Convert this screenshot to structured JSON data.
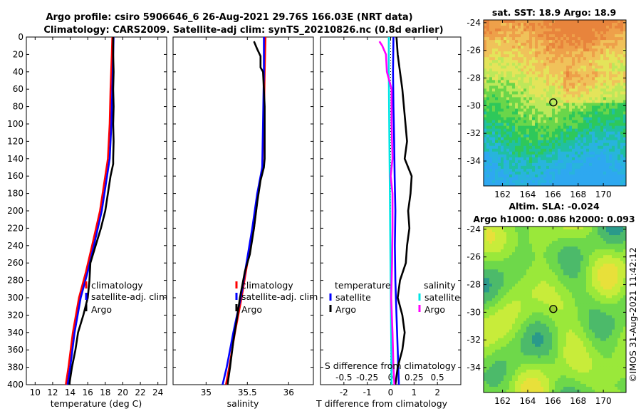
{
  "header": {
    "title_line1": "Argo profile: csiro 5906646_6 26-Aug-2021 29.76S 166.03E (NRT data)",
    "title_line2": "Climatology: CARS2009. Satellite-adj clim: synTS_20210826.nc (0.8d earlier)"
  },
  "copyright": "©IMOS 31-Aug-2021 11:42:12",
  "colors": {
    "climatology": "#ff0000",
    "satellite": "#0000ff",
    "argo": "#000000",
    "s_satellite": "#00e5e5",
    "s_argo": "#ff00ff"
  },
  "chart_data": [
    {
      "id": "temperature",
      "type": "line",
      "xlabel": "temperature (deg C)",
      "ylabel": "",
      "xlim": [
        9,
        25
      ],
      "ylim": [
        400,
        0
      ],
      "xticks": [
        "10",
        "12",
        "14",
        "16",
        "18",
        "20",
        "22",
        "24"
      ],
      "xtick_values": [
        10,
        12,
        14,
        16,
        18,
        20,
        22,
        24
      ],
      "yticks": [
        "0",
        "20",
        "40",
        "60",
        "80",
        "100",
        "120",
        "140",
        "160",
        "180",
        "200",
        "220",
        "240",
        "260",
        "280",
        "300",
        "320",
        "340",
        "360",
        "380",
        "400"
      ],
      "ytick_values": [
        0,
        20,
        40,
        60,
        80,
        100,
        120,
        140,
        160,
        180,
        200,
        220,
        240,
        260,
        280,
        300,
        320,
        340,
        360,
        380,
        400
      ],
      "legend": [
        "climatology",
        "satellite-adj. clim",
        "Argo"
      ],
      "series": [
        {
          "name": "climatology",
          "color": "#ff0000",
          "points": [
            [
              18.8,
              0
            ],
            [
              18.75,
              20
            ],
            [
              18.6,
              60
            ],
            [
              18.5,
              100
            ],
            [
              18.3,
              140
            ],
            [
              18.0,
              160
            ],
            [
              17.4,
              200
            ],
            [
              16.5,
              240
            ],
            [
              15.8,
              270
            ],
            [
              15.0,
              300
            ],
            [
              14.3,
              340
            ],
            [
              13.8,
              380
            ],
            [
              13.5,
              400
            ]
          ]
        },
        {
          "name": "satellite-adj. clim",
          "color": "#0000ff",
          "points": [
            [
              18.95,
              0
            ],
            [
              18.9,
              20
            ],
            [
              18.8,
              60
            ],
            [
              18.7,
              100
            ],
            [
              18.5,
              140
            ],
            [
              18.2,
              160
            ],
            [
              17.6,
              200
            ],
            [
              16.7,
              240
            ],
            [
              16.0,
              270
            ],
            [
              15.2,
              300
            ],
            [
              14.5,
              340
            ],
            [
              14.0,
              380
            ],
            [
              13.7,
              400
            ]
          ]
        },
        {
          "name": "Argo",
          "color": "#000000",
          "points": [
            [
              18.9,
              0
            ],
            [
              18.9,
              20
            ],
            [
              18.95,
              40
            ],
            [
              18.9,
              60
            ],
            [
              18.95,
              80
            ],
            [
              18.9,
              100
            ],
            [
              18.95,
              120
            ],
            [
              18.9,
              140
            ],
            [
              18.9,
              146
            ],
            [
              18.6,
              160
            ],
            [
              18.3,
              180
            ],
            [
              18.0,
              200
            ],
            [
              17.5,
              220
            ],
            [
              16.9,
              240
            ],
            [
              16.3,
              260
            ],
            [
              16.2,
              280
            ],
            [
              16.0,
              300
            ],
            [
              15.5,
              320
            ],
            [
              14.9,
              340
            ],
            [
              14.6,
              360
            ],
            [
              14.2,
              380
            ],
            [
              13.9,
              400
            ]
          ]
        }
      ]
    },
    {
      "id": "salinity",
      "type": "line",
      "xlabel": "salinity",
      "xlim": [
        34.6,
        36.3
      ],
      "ylim": [
        400,
        0
      ],
      "xticks": [
        "35",
        "35.5",
        "36"
      ],
      "xtick_values": [
        35,
        35.5,
        36
      ],
      "legend": [
        "climatology",
        "satellite-adj. clim",
        "Argo"
      ],
      "series": [
        {
          "name": "climatology",
          "color": "#ff0000",
          "points": [
            [
              35.72,
              0
            ],
            [
              35.71,
              40
            ],
            [
              35.7,
              100
            ],
            [
              35.68,
              150
            ],
            [
              35.63,
              180
            ],
            [
              35.58,
              220
            ],
            [
              35.5,
              260
            ],
            [
              35.43,
              300
            ],
            [
              35.35,
              340
            ],
            [
              35.28,
              380
            ],
            [
              35.24,
              400
            ]
          ]
        },
        {
          "name": "satellite-adj. clim",
          "color": "#0000ff",
          "points": [
            [
              35.7,
              0
            ],
            [
              35.7,
              40
            ],
            [
              35.69,
              100
            ],
            [
              35.68,
              150
            ],
            [
              35.62,
              180
            ],
            [
              35.56,
              220
            ],
            [
              35.49,
              260
            ],
            [
              35.42,
              300
            ],
            [
              35.33,
              340
            ],
            [
              35.25,
              380
            ],
            [
              35.2,
              400
            ]
          ]
        },
        {
          "name": "Argo",
          "color": "#000000",
          "points": [
            [
              35.58,
              5
            ],
            [
              35.62,
              14
            ],
            [
              35.66,
              22
            ],
            [
              35.66,
              35
            ],
            [
              35.69,
              40
            ],
            [
              35.7,
              60
            ],
            [
              35.71,
              80
            ],
            [
              35.71,
              120
            ],
            [
              35.71,
              140
            ],
            [
              35.7,
              150
            ],
            [
              35.66,
              165
            ],
            [
              35.62,
              190
            ],
            [
              35.58,
              220
            ],
            [
              35.53,
              250
            ],
            [
              35.47,
              270
            ],
            [
              35.41,
              300
            ],
            [
              35.38,
              320
            ],
            [
              35.33,
              350
            ],
            [
              35.29,
              380
            ],
            [
              35.26,
              400
            ]
          ]
        }
      ]
    },
    {
      "id": "difference",
      "type": "line",
      "xlabel": "T difference from climatology",
      "x2label": "S difference from climatology",
      "xlim": [
        -3,
        3
      ],
      "x2lim": [
        -0.75,
        0.75
      ],
      "ylim": [
        400,
        0
      ],
      "xticks": [
        "-2",
        "-1",
        "0",
        "1",
        "2"
      ],
      "xtick_values": [
        -2,
        -1,
        0,
        1,
        2
      ],
      "x2ticks": [
        "-0.5",
        "-0.25",
        "0",
        "0.25",
        "0.5"
      ],
      "x2tick_values": [
        -0.5,
        -0.25,
        0,
        0.25,
        0.5
      ],
      "legend_temperature_header": "temperature",
      "legend_salinity_header": "salinity",
      "legend_temperature": [
        "satellite",
        "Argo"
      ],
      "legend_salinity": [
        "satellite",
        "Argo"
      ],
      "series": [
        {
          "name": "T satellite",
          "axis": "T",
          "color": "#0000ff",
          "points": [
            [
              0.12,
              0
            ],
            [
              0.1,
              40
            ],
            [
              0.12,
              80
            ],
            [
              0.15,
              120
            ],
            [
              0.17,
              160
            ],
            [
              0.2,
              200
            ],
            [
              0.18,
              240
            ],
            [
              0.2,
              280
            ],
            [
              0.25,
              320
            ],
            [
              0.3,
              360
            ],
            [
              0.35,
              400
            ]
          ]
        },
        {
          "name": "T Argo",
          "axis": "T",
          "color": "#000000",
          "points": [
            [
              0.25,
              0
            ],
            [
              0.3,
              20
            ],
            [
              0.4,
              40
            ],
            [
              0.5,
              60
            ],
            [
              0.6,
              90
            ],
            [
              0.7,
              120
            ],
            [
              0.6,
              140
            ],
            [
              0.75,
              150
            ],
            [
              0.9,
              160
            ],
            [
              0.85,
              180
            ],
            [
              0.75,
              200
            ],
            [
              0.8,
              220
            ],
            [
              0.7,
              240
            ],
            [
              0.65,
              260
            ],
            [
              0.4,
              280
            ],
            [
              0.3,
              300
            ],
            [
              0.5,
              320
            ],
            [
              0.6,
              340
            ],
            [
              0.5,
              360
            ],
            [
              0.3,
              380
            ],
            [
              0.2,
              400
            ]
          ]
        },
        {
          "name": "S satellite",
          "axis": "S",
          "color": "#00e5e5",
          "points": [
            [
              -0.02,
              0
            ],
            [
              -0.02,
              40
            ],
            [
              -0.015,
              100
            ],
            [
              -0.01,
              160
            ],
            [
              -0.005,
              220
            ],
            [
              0.0,
              280
            ],
            [
              0.005,
              340
            ],
            [
              0.01,
              400
            ]
          ]
        },
        {
          "name": "S Argo",
          "axis": "S",
          "color": "#ff00ff",
          "points": [
            [
              -0.12,
              5
            ],
            [
              -0.09,
              10
            ],
            [
              -0.05,
              20
            ],
            [
              -0.04,
              40
            ],
            [
              0.01,
              60
            ],
            [
              0.01,
              100
            ],
            [
              0.02,
              140
            ],
            [
              0.0,
              160
            ],
            [
              0.02,
              180
            ],
            [
              0.02,
              220
            ],
            [
              0.015,
              260
            ],
            [
              0.005,
              300
            ],
            [
              0.02,
              340
            ],
            [
              0.03,
              380
            ],
            [
              0.04,
              400
            ]
          ]
        }
      ]
    },
    {
      "id": "sst_map",
      "type": "heatmap",
      "title": "sat. SST: 18.9 Argo: 18.9",
      "xlim": [
        160.5,
        171.8
      ],
      "ylim": [
        -35.8,
        -23.8
      ],
      "xticks": [
        "162",
        "164",
        "166",
        "168",
        "170"
      ],
      "xtick_values": [
        162,
        164,
        166,
        168,
        170
      ],
      "yticks": [
        "-24",
        "-26",
        "-28",
        "-30",
        "-32",
        "-34"
      ],
      "ytick_values": [
        -24,
        -26,
        -28,
        -30,
        -32,
        -34
      ],
      "marker": {
        "lon": 166.03,
        "lat": -29.76
      }
    },
    {
      "id": "sla_map",
      "type": "heatmap",
      "title": "Altim. SLA: -0.024",
      "subtitle": "Argo h1000: 0.086 h2000: 0.093",
      "xlim": [
        160.5,
        171.8
      ],
      "ylim": [
        -35.8,
        -23.8
      ],
      "xticks": [
        "162",
        "164",
        "166",
        "168",
        "170"
      ],
      "xtick_values": [
        162,
        164,
        166,
        168,
        170
      ],
      "yticks": [
        "-24",
        "-26",
        "-28",
        "-30",
        "-32",
        "-34"
      ],
      "ytick_values": [
        -24,
        -26,
        -28,
        -30,
        -32,
        -34
      ],
      "marker": {
        "lon": 166.03,
        "lat": -29.76
      }
    }
  ]
}
